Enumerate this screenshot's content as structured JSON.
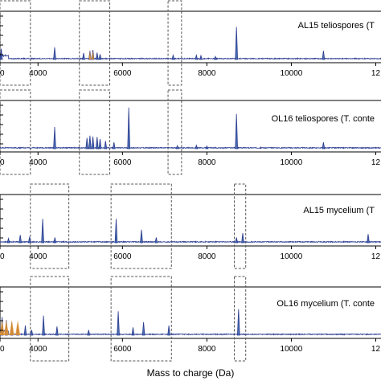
{
  "chart_data": [
    {
      "type": "line",
      "title": "AL15 teliospores (T",
      "xlabel": "",
      "xlim": [
        3100,
        12200
      ],
      "ylim": [
        0,
        1
      ],
      "x_ticks": [
        "00",
        "4000",
        "6000",
        "8000",
        "10000",
        "12"
      ],
      "x_tick_values": [
        3100,
        4000,
        6000,
        8000,
        10000,
        12000
      ],
      "dashed_windows": [
        [
          3100,
          3820
        ],
        [
          4980,
          5700
        ],
        [
          7080,
          7400
        ]
      ],
      "series": [
        {
          "peaks": [
            {
              "x": 3130,
              "y": 0.25
            },
            {
              "x": 4395,
              "y": 0.28
            },
            {
              "x": 5080,
              "y": 0.15
            },
            {
              "x": 5230,
              "y": 0.2
            },
            {
              "x": 5300,
              "y": 0.22
            },
            {
              "x": 5400,
              "y": 0.16
            },
            {
              "x": 5470,
              "y": 0.12
            },
            {
              "x": 7200,
              "y": 0.1
            },
            {
              "x": 7750,
              "y": 0.1
            },
            {
              "x": 7860,
              "y": 0.09
            },
            {
              "x": 8200,
              "y": 0.07
            },
            {
              "x": 8700,
              "y": 0.75
            },
            {
              "x": 10760,
              "y": 0.2
            }
          ]
        }
      ]
    },
    {
      "type": "line",
      "title": "OL16 teliospores (T. conte",
      "xlabel": "",
      "xlim": [
        3100,
        12200
      ],
      "ylim": [
        0,
        1
      ],
      "x_ticks": [
        "00",
        "4000",
        "6000",
        "8000",
        "10000",
        "12"
      ],
      "x_tick_values": [
        3100,
        4000,
        6000,
        8000,
        10000,
        12000
      ],
      "dashed_windows": [
        [
          3100,
          3820
        ],
        [
          4980,
          5700
        ],
        [
          7080,
          7400
        ]
      ],
      "series": [
        {
          "peaks": [
            {
              "x": 4395,
              "y": 0.5
            },
            {
              "x": 5160,
              "y": 0.25
            },
            {
              "x": 5230,
              "y": 0.3
            },
            {
              "x": 5300,
              "y": 0.28
            },
            {
              "x": 5400,
              "y": 0.27
            },
            {
              "x": 5470,
              "y": 0.22
            },
            {
              "x": 5600,
              "y": 0.18
            },
            {
              "x": 5800,
              "y": 0.15
            },
            {
              "x": 6150,
              "y": 0.95
            },
            {
              "x": 7300,
              "y": 0.07
            },
            {
              "x": 7750,
              "y": 0.08
            },
            {
              "x": 8000,
              "y": 0.06
            },
            {
              "x": 8700,
              "y": 0.8
            },
            {
              "x": 10760,
              "y": 0.15
            }
          ]
        }
      ]
    },
    {
      "type": "line",
      "title": "AL15 mycelium (T",
      "xlabel": "",
      "xlim": [
        3100,
        12200
      ],
      "ylim": [
        0,
        1
      ],
      "x_ticks": [
        "00",
        "4000",
        "6000",
        "8000",
        "10000",
        "12"
      ],
      "x_tick_values": [
        3100,
        4000,
        6000,
        8000,
        10000,
        12000
      ],
      "dashed_windows": [
        [
          3820,
          4730
        ],
        [
          5730,
          7160
        ],
        [
          8650,
          8920
        ]
      ],
      "series": [
        {
          "peaks": [
            {
              "x": 3300,
              "y": 0.1
            },
            {
              "x": 3580,
              "y": 0.18
            },
            {
              "x": 3800,
              "y": 0.14
            },
            {
              "x": 4110,
              "y": 0.55
            },
            {
              "x": 4400,
              "y": 0.12
            },
            {
              "x": 5850,
              "y": 0.55
            },
            {
              "x": 6450,
              "y": 0.3
            },
            {
              "x": 6800,
              "y": 0.12
            },
            {
              "x": 8700,
              "y": 0.12
            },
            {
              "x": 8850,
              "y": 0.22
            },
            {
              "x": 11820,
              "y": 0.2
            }
          ]
        }
      ]
    },
    {
      "type": "line",
      "title": "OL16 mycelium (T. conte",
      "xlabel": "Mass to charge (Da)",
      "xlim": [
        3100,
        12200
      ],
      "ylim": [
        0,
        1
      ],
      "x_ticks": [
        "00",
        "4000",
        "6000",
        "8000",
        "10000",
        "12"
      ],
      "x_tick_values": [
        3100,
        4000,
        6000,
        8000,
        10000,
        12000
      ],
      "dashed_windows": [
        [
          3820,
          4730
        ],
        [
          5730,
          7160
        ],
        [
          8650,
          8920
        ]
      ],
      "series": [
        {
          "peaks": [
            {
              "x": 3150,
              "y": 0.42
            },
            {
              "x": 3250,
              "y": 0.35
            },
            {
              "x": 3380,
              "y": 0.3
            },
            {
              "x": 3520,
              "y": 0.25
            },
            {
              "x": 3700,
              "y": 0.22
            },
            {
              "x": 3850,
              "y": 0.12
            },
            {
              "x": 4130,
              "y": 0.45
            },
            {
              "x": 4450,
              "y": 0.2
            },
            {
              "x": 5200,
              "y": 0.12
            },
            {
              "x": 5900,
              "y": 0.55
            },
            {
              "x": 6250,
              "y": 0.18
            },
            {
              "x": 6500,
              "y": 0.3
            },
            {
              "x": 7100,
              "y": 0.22
            },
            {
              "x": 8750,
              "y": 0.6
            }
          ]
        }
      ]
    }
  ],
  "colors": {
    "trace": "#2b3c8f",
    "trace_fill": "#4a6fb5",
    "highlight": "#e8932a"
  }
}
